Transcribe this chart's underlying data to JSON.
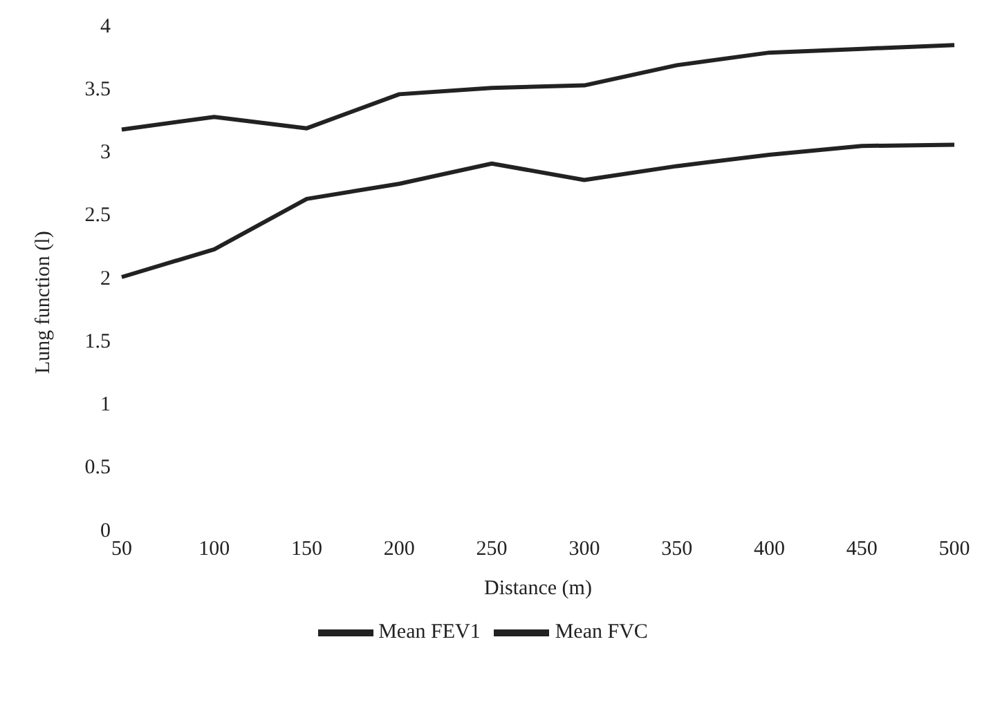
{
  "chart_data": {
    "type": "line",
    "xlabel": "Distance (m)",
    "ylabel": "Lung function (l)",
    "categories": [
      "50",
      "100",
      "150",
      "200",
      "250",
      "300",
      "350",
      "400",
      "450",
      "500"
    ],
    "series": [
      {
        "name": "Mean FVC",
        "color": "#222222",
        "values": [
          3.17,
          3.27,
          3.18,
          3.45,
          3.5,
          3.52,
          3.68,
          3.78,
          3.81,
          3.84
        ]
      },
      {
        "name": "Mean FEV1",
        "color": "#222222",
        "values": [
          2.0,
          2.22,
          2.62,
          2.74,
          2.9,
          2.77,
          2.88,
          2.97,
          3.04,
          3.05
        ]
      }
    ],
    "ylim": [
      0,
      4
    ],
    "yticks": [
      0,
      0.5,
      1,
      1.5,
      2,
      2.5,
      3,
      3.5,
      4
    ],
    "grid": false,
    "legend": "bottom",
    "marker": "none",
    "line_style": "solid"
  }
}
